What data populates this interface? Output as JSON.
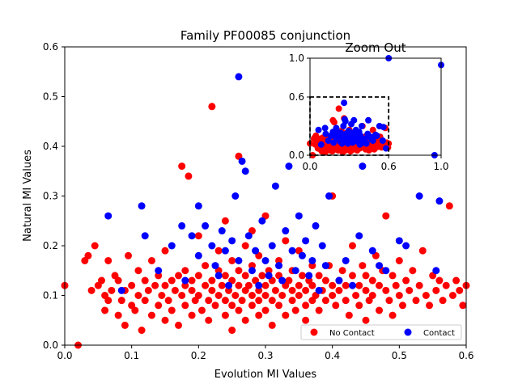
{
  "chart_data": [
    {
      "type": "scatter",
      "title": "Family PF00085 conjunction",
      "xlabel": "Evolution MI Values",
      "ylabel": "Natural MI Values",
      "xlim": [
        0.0,
        0.6
      ],
      "ylim": [
        0.0,
        0.6
      ],
      "xticks": [
        "0.0",
        "0.1",
        "0.2",
        "0.3",
        "0.4",
        "0.5",
        "0.6"
      ],
      "yticks": [
        "0.0",
        "0.1",
        "0.2",
        "0.3",
        "0.4",
        "0.5",
        "0.6"
      ],
      "grid": false,
      "legend_position": "lower-right",
      "series": [
        {
          "name": "No Contact",
          "color": "#ff0000",
          "points": [
            [
              0.0,
              0.12
            ],
            [
              0.02,
              0.0
            ],
            [
              0.03,
              0.17
            ],
            [
              0.035,
              0.18
            ],
            [
              0.04,
              0.11
            ],
            [
              0.045,
              0.2
            ],
            [
              0.05,
              0.12
            ],
            [
              0.055,
              0.13
            ],
            [
              0.06,
              0.07
            ],
            [
              0.06,
              0.1
            ],
            [
              0.065,
              0.09
            ],
            [
              0.065,
              0.17
            ],
            [
              0.07,
              0.11
            ],
            [
              0.075,
              0.14
            ],
            [
              0.08,
              0.06
            ],
            [
              0.08,
              0.13
            ],
            [
              0.085,
              0.09
            ],
            [
              0.09,
              0.04
            ],
            [
              0.09,
              0.11
            ],
            [
              0.095,
              0.18
            ],
            [
              0.1,
              0.08
            ],
            [
              0.1,
              0.12
            ],
            [
              0.105,
              0.07
            ],
            [
              0.11,
              0.15
            ],
            [
              0.11,
              0.1
            ],
            [
              0.115,
              0.03
            ],
            [
              0.12,
              0.09
            ],
            [
              0.12,
              0.13
            ],
            [
              0.125,
              0.11
            ],
            [
              0.13,
              0.06
            ],
            [
              0.13,
              0.17
            ],
            [
              0.135,
              0.12
            ],
            [
              0.14,
              0.08
            ],
            [
              0.14,
              0.14
            ],
            [
              0.145,
              0.1
            ],
            [
              0.15,
              0.05
            ],
            [
              0.15,
              0.12
            ],
            [
              0.15,
              0.19
            ],
            [
              0.155,
              0.09
            ],
            [
              0.16,
              0.13
            ],
            [
              0.16,
              0.07
            ],
            [
              0.165,
              0.11
            ],
            [
              0.17,
              0.14
            ],
            [
              0.17,
              0.04
            ],
            [
              0.175,
              0.1
            ],
            [
              0.175,
              0.36
            ],
            [
              0.18,
              0.08
            ],
            [
              0.18,
              0.12
            ],
            [
              0.18,
              0.15
            ],
            [
              0.185,
              0.34
            ],
            [
              0.19,
              0.06
            ],
            [
              0.19,
              0.11
            ],
            [
              0.19,
              0.13
            ],
            [
              0.195,
              0.09
            ],
            [
              0.2,
              0.1
            ],
            [
              0.2,
              0.14
            ],
            [
              0.2,
              0.22
            ],
            [
              0.205,
              0.07
            ],
            [
              0.21,
              0.12
            ],
            [
              0.21,
              0.16
            ],
            [
              0.215,
              0.09
            ],
            [
              0.215,
              0.05
            ],
            [
              0.22,
              0.48
            ],
            [
              0.22,
              0.11
            ],
            [
              0.22,
              0.13
            ],
            [
              0.225,
              0.08
            ],
            [
              0.23,
              0.15
            ],
            [
              0.23,
              0.1
            ],
            [
              0.23,
              0.19
            ],
            [
              0.235,
              0.12
            ],
            [
              0.24,
              0.06
            ],
            [
              0.24,
              0.09
            ],
            [
              0.24,
              0.14
            ],
            [
              0.24,
              0.25
            ],
            [
              0.245,
              0.11
            ],
            [
              0.25,
              0.08
            ],
            [
              0.25,
              0.13
            ],
            [
              0.25,
              0.17
            ],
            [
              0.25,
              0.03
            ],
            [
              0.255,
              0.1
            ],
            [
              0.26,
              0.12
            ],
            [
              0.26,
              0.15
            ],
            [
              0.26,
              0.07
            ],
            [
              0.26,
              0.38
            ],
            [
              0.265,
              0.09
            ],
            [
              0.27,
              0.11
            ],
            [
              0.27,
              0.14
            ],
            [
              0.27,
              0.2
            ],
            [
              0.27,
              0.05
            ],
            [
              0.275,
              0.12
            ],
            [
              0.28,
              0.08
            ],
            [
              0.28,
              0.1
            ],
            [
              0.28,
              0.16
            ],
            [
              0.28,
              0.23
            ],
            [
              0.285,
              0.13
            ],
            [
              0.29,
              0.06
            ],
            [
              0.29,
              0.11
            ],
            [
              0.29,
              0.09
            ],
            [
              0.29,
              0.18
            ],
            [
              0.295,
              0.14
            ],
            [
              0.3,
              0.1
            ],
            [
              0.3,
              0.12
            ],
            [
              0.3,
              0.07
            ],
            [
              0.3,
              0.26
            ],
            [
              0.305,
              0.15
            ],
            [
              0.31,
              0.09
            ],
            [
              0.31,
              0.13
            ],
            [
              0.31,
              0.04
            ],
            [
              0.315,
              0.11
            ],
            [
              0.32,
              0.08
            ],
            [
              0.32,
              0.14
            ],
            [
              0.32,
              0.17
            ],
            [
              0.325,
              0.1
            ],
            [
              0.33,
              0.12
            ],
            [
              0.33,
              0.06
            ],
            [
              0.33,
              0.21
            ],
            [
              0.335,
              0.13
            ],
            [
              0.34,
              0.09
            ],
            [
              0.34,
              0.11
            ],
            [
              0.34,
              0.15
            ],
            [
              0.345,
              0.07
            ],
            [
              0.35,
              0.12
            ],
            [
              0.35,
              0.1
            ],
            [
              0.35,
              0.19
            ],
            [
              0.355,
              0.14
            ],
            [
              0.36,
              0.08
            ],
            [
              0.36,
              0.11
            ],
            [
              0.36,
              0.05
            ],
            [
              0.365,
              0.13
            ],
            [
              0.37,
              0.09
            ],
            [
              0.37,
              0.12
            ],
            [
              0.37,
              0.16
            ],
            [
              0.375,
              0.1
            ],
            [
              0.38,
              0.07
            ],
            [
              0.38,
              0.14
            ],
            [
              0.385,
              0.11
            ],
            [
              0.39,
              0.13
            ],
            [
              0.39,
              0.09
            ],
            [
              0.395,
              0.16
            ],
            [
              0.4,
              0.1
            ],
            [
              0.4,
              0.12
            ],
            [
              0.4,
              0.3
            ],
            [
              0.405,
              0.08
            ],
            [
              0.41,
              0.13
            ],
            [
              0.41,
              0.11
            ],
            [
              0.415,
              0.15
            ],
            [
              0.42,
              0.09
            ],
            [
              0.42,
              0.12
            ],
            [
              0.425,
              0.06
            ],
            [
              0.43,
              0.14
            ],
            [
              0.43,
              0.2
            ],
            [
              0.435,
              0.1
            ],
            [
              0.44,
              0.12
            ],
            [
              0.44,
              0.08
            ],
            [
              0.445,
              0.16
            ],
            [
              0.45,
              0.11
            ],
            [
              0.45,
              0.14
            ],
            [
              0.45,
              0.05
            ],
            [
              0.455,
              0.09
            ],
            [
              0.46,
              0.13
            ],
            [
              0.46,
              0.1
            ],
            [
              0.465,
              0.18
            ],
            [
              0.47,
              0.12
            ],
            [
              0.47,
              0.07
            ],
            [
              0.475,
              0.15
            ],
            [
              0.48,
              0.11
            ],
            [
              0.48,
              0.26
            ],
            [
              0.485,
              0.09
            ],
            [
              0.49,
              0.14
            ],
            [
              0.49,
              0.06
            ],
            [
              0.495,
              0.12
            ],
            [
              0.5,
              0.1
            ],
            [
              0.5,
              0.17
            ],
            [
              0.505,
              0.08
            ],
            [
              0.51,
              0.13
            ],
            [
              0.515,
              0.11
            ],
            [
              0.52,
              0.15
            ],
            [
              0.525,
              0.09
            ],
            [
              0.53,
              0.12
            ],
            [
              0.535,
              0.19
            ],
            [
              0.54,
              0.1
            ],
            [
              0.545,
              0.08
            ],
            [
              0.55,
              0.14
            ],
            [
              0.555,
              0.11
            ],
            [
              0.56,
              0.13
            ],
            [
              0.565,
              0.09
            ],
            [
              0.57,
              0.12
            ],
            [
              0.575,
              0.28
            ],
            [
              0.58,
              0.1
            ],
            [
              0.585,
              0.13
            ],
            [
              0.59,
              0.11
            ],
            [
              0.595,
              0.08
            ],
            [
              0.6,
              0.12
            ]
          ]
        },
        {
          "name": "Contact",
          "color": "#0000ff",
          "points": [
            [
              0.065,
              0.26
            ],
            [
              0.085,
              0.11
            ],
            [
              0.115,
              0.28
            ],
            [
              0.12,
              0.22
            ],
            [
              0.14,
              0.15
            ],
            [
              0.16,
              0.2
            ],
            [
              0.175,
              0.24
            ],
            [
              0.18,
              0.13
            ],
            [
              0.19,
              0.22
            ],
            [
              0.2,
              0.18
            ],
            [
              0.2,
              0.28
            ],
            [
              0.21,
              0.24
            ],
            [
              0.22,
              0.2
            ],
            [
              0.225,
              0.16
            ],
            [
              0.23,
              0.14
            ],
            [
              0.235,
              0.23
            ],
            [
              0.24,
              0.19
            ],
            [
              0.245,
              0.12
            ],
            [
              0.25,
              0.21
            ],
            [
              0.255,
              0.3
            ],
            [
              0.26,
              0.54
            ],
            [
              0.26,
              0.17
            ],
            [
              0.265,
              0.37
            ],
            [
              0.27,
              0.35
            ],
            [
              0.275,
              0.22
            ],
            [
              0.28,
              0.15
            ],
            [
              0.285,
              0.19
            ],
            [
              0.29,
              0.12
            ],
            [
              0.295,
              0.25
            ],
            [
              0.3,
              0.17
            ],
            [
              0.305,
              0.14
            ],
            [
              0.31,
              0.2
            ],
            [
              0.315,
              0.32
            ],
            [
              0.32,
              0.16
            ],
            [
              0.325,
              0.13
            ],
            [
              0.33,
              0.23
            ],
            [
              0.335,
              0.36
            ],
            [
              0.34,
              0.19
            ],
            [
              0.345,
              0.15
            ],
            [
              0.35,
              0.26
            ],
            [
              0.355,
              0.18
            ],
            [
              0.36,
              0.21
            ],
            [
              0.365,
              0.14
            ],
            [
              0.37,
              0.17
            ],
            [
              0.375,
              0.24
            ],
            [
              0.38,
              0.11
            ],
            [
              0.385,
              0.2
            ],
            [
              0.39,
              0.16
            ],
            [
              0.395,
              0.3
            ],
            [
              0.41,
              0.13
            ],
            [
              0.42,
              0.17
            ],
            [
              0.43,
              0.12
            ],
            [
              0.44,
              0.22
            ],
            [
              0.445,
              0.36
            ],
            [
              0.46,
              0.19
            ],
            [
              0.47,
              0.16
            ],
            [
              0.48,
              0.15
            ],
            [
              0.5,
              0.21
            ],
            [
              0.51,
              0.2
            ],
            [
              0.53,
              0.3
            ],
            [
              0.555,
              0.15
            ],
            [
              0.56,
              0.29
            ]
          ]
        }
      ]
    },
    {
      "type": "scatter",
      "title": "Zoom Out",
      "xlim": [
        0.0,
        1.0
      ],
      "ylim": [
        0.0,
        1.0
      ],
      "xticks": [
        "0.0",
        "0.6",
        "1.0"
      ],
      "yticks": [
        "0.0",
        "0.6",
        "1.0"
      ],
      "zoom_region": {
        "x": [
          0.0,
          0.6
        ],
        "y": [
          0.0,
          0.6
        ],
        "style": "dashed",
        "color": "#000000"
      },
      "extra_contact_points": [
        [
          0.6,
          1.0
        ],
        [
          0.58,
          0.07
        ],
        [
          0.95,
          0.0
        ],
        [
          1.0,
          0.93
        ]
      ]
    }
  ]
}
